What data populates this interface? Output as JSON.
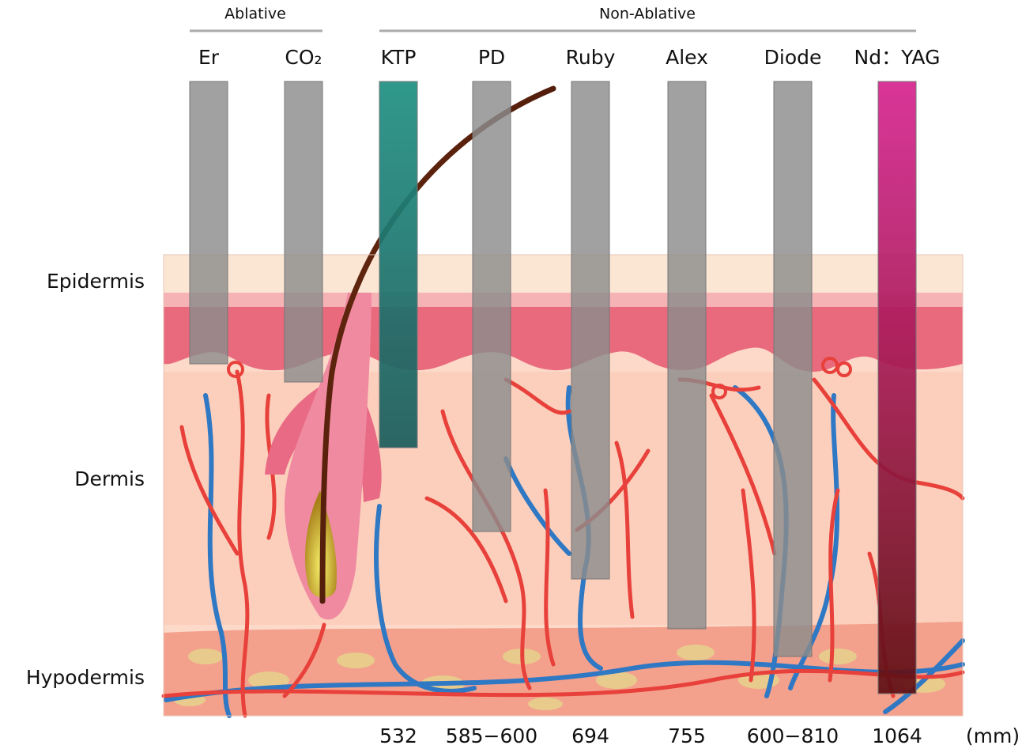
{
  "groups": [
    {
      "label": "Ablative"
    },
    {
      "label": "Non-Ablative"
    }
  ],
  "lasers": [
    {
      "name": "Er"
    },
    {
      "name": "CO₂"
    },
    {
      "name": "KTP",
      "wavelength": "532"
    },
    {
      "name": "PD",
      "wavelength": "585−600"
    },
    {
      "name": "Ruby",
      "wavelength": "694"
    },
    {
      "name": "Alex",
      "wavelength": "755"
    },
    {
      "name": "Diode",
      "wavelength": "600−810"
    },
    {
      "name": "Nd：YAG",
      "wavelength": "1064"
    }
  ],
  "unit": "(mm)",
  "layers": [
    {
      "label": "Epidermis"
    },
    {
      "label": "Dermis"
    },
    {
      "label": "Hypodermis"
    }
  ]
}
